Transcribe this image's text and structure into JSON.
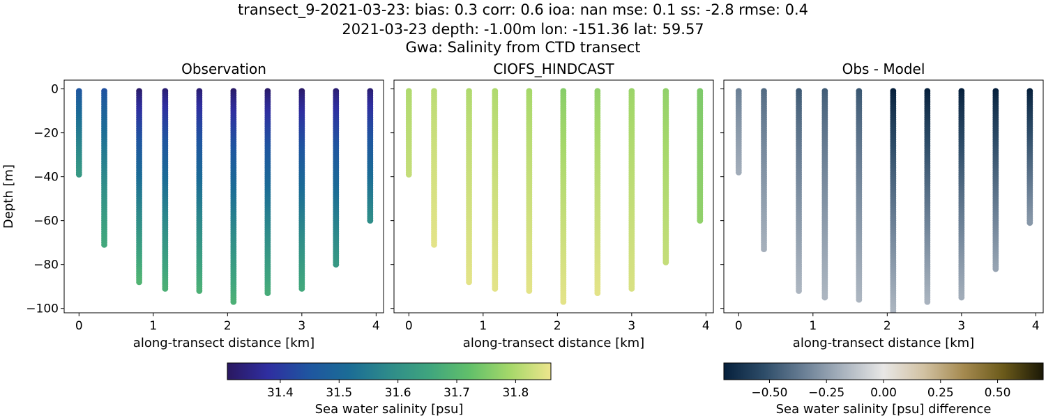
{
  "suptitle": {
    "line1": "transect_9-2021-03-23: bias: 0.3  corr: 0.6  ioa: nan  mse: 0.1  ss: -2.8  rmse: 0.4",
    "line2": "2021-03-23 depth: -1.00m lon: -151.36 lat: 59.57",
    "line3": "Gwa: Salinity from CTD transect"
  },
  "chart_data": [
    {
      "type": "scatter",
      "title": "Observation",
      "xlabel": "along-transect distance [km]",
      "ylabel": "Depth [m]",
      "xlim": [
        -0.2,
        4.1
      ],
      "ylim": [
        -102,
        4
      ],
      "xticks": [
        0,
        1,
        2,
        3,
        4
      ],
      "yticks": [
        0,
        -20,
        -40,
        -60,
        -80,
        -100
      ],
      "color_scale": "salinity",
      "profiles": [
        {
          "x": 0.0,
          "depth_min": -39,
          "surface": 31.45,
          "bottom": 31.62
        },
        {
          "x": 0.34,
          "depth_min": -71,
          "surface": 31.44,
          "bottom": 31.66
        },
        {
          "x": 0.81,
          "depth_min": -88,
          "surface": 31.32,
          "bottom": 31.69
        },
        {
          "x": 1.16,
          "depth_min": -91,
          "surface": 31.33,
          "bottom": 31.68
        },
        {
          "x": 1.62,
          "depth_min": -92,
          "surface": 31.33,
          "bottom": 31.68
        },
        {
          "x": 2.08,
          "depth_min": -97,
          "surface": 31.32,
          "bottom": 31.68
        },
        {
          "x": 2.54,
          "depth_min": -93,
          "surface": 31.32,
          "bottom": 31.67
        },
        {
          "x": 3.0,
          "depth_min": -91,
          "surface": 31.32,
          "bottom": 31.66
        },
        {
          "x": 3.46,
          "depth_min": -80,
          "surface": 31.33,
          "bottom": 31.62
        },
        {
          "x": 3.92,
          "depth_min": -60,
          "surface": 31.33,
          "bottom": 31.59
        }
      ]
    },
    {
      "type": "scatter",
      "title": "CIOFS_HINDCAST",
      "xlabel": "along-transect distance [km]",
      "xlim": [
        -0.2,
        4.1
      ],
      "ylim": [
        -102,
        4
      ],
      "xticks": [
        0,
        1,
        2,
        3,
        4
      ],
      "color_scale": "salinity",
      "profiles": [
        {
          "x": 0.0,
          "depth_min": -39,
          "surface": 31.8,
          "bottom": 31.82
        },
        {
          "x": 0.34,
          "depth_min": -71,
          "surface": 31.81,
          "bottom": 31.85
        },
        {
          "x": 0.81,
          "depth_min": -88,
          "surface": 31.8,
          "bottom": 31.85
        },
        {
          "x": 1.16,
          "depth_min": -91,
          "surface": 31.8,
          "bottom": 31.85
        },
        {
          "x": 1.62,
          "depth_min": -92,
          "surface": 31.79,
          "bottom": 31.85
        },
        {
          "x": 2.08,
          "depth_min": -97,
          "surface": 31.76,
          "bottom": 31.85
        },
        {
          "x": 2.54,
          "depth_min": -93,
          "surface": 31.77,
          "bottom": 31.85
        },
        {
          "x": 3.0,
          "depth_min": -91,
          "surface": 31.78,
          "bottom": 31.84
        },
        {
          "x": 3.46,
          "depth_min": -79,
          "surface": 31.77,
          "bottom": 31.82
        },
        {
          "x": 3.92,
          "depth_min": -60,
          "surface": 31.75,
          "bottom": 31.77
        }
      ]
    },
    {
      "type": "scatter",
      "title": "Obs - Model",
      "xlabel": "along-transect distance [km]",
      "xlim": [
        -0.2,
        4.1
      ],
      "ylim": [
        -102,
        4
      ],
      "xticks": [
        0,
        1,
        2,
        3,
        4
      ],
      "color_scale": "difference",
      "profiles": [
        {
          "x": 0.0,
          "depth_min": -38,
          "surface": -0.35,
          "bottom": -0.2
        },
        {
          "x": 0.34,
          "depth_min": -73,
          "surface": -0.42,
          "bottom": -0.19
        },
        {
          "x": 0.81,
          "depth_min": -92,
          "surface": -0.48,
          "bottom": -0.17
        },
        {
          "x": 1.16,
          "depth_min": -95,
          "surface": -0.47,
          "bottom": -0.17
        },
        {
          "x": 1.62,
          "depth_min": -96,
          "surface": -0.49,
          "bottom": -0.17
        },
        {
          "x": 2.08,
          "depth_min": -102,
          "surface": -0.7,
          "bottom": -0.17
        },
        {
          "x": 2.54,
          "depth_min": -97,
          "surface": -0.7,
          "bottom": -0.18
        },
        {
          "x": 3.0,
          "depth_min": -95,
          "surface": -0.7,
          "bottom": -0.2
        },
        {
          "x": 3.46,
          "depth_min": -82,
          "surface": -0.7,
          "bottom": -0.23
        },
        {
          "x": 3.92,
          "depth_min": -61,
          "surface": -0.7,
          "bottom": -0.27
        }
      ]
    }
  ],
  "colorbars": {
    "salinity": {
      "label": "Sea water salinity [psu]",
      "range": [
        31.31,
        31.86
      ],
      "ticks": [
        31.4,
        31.5,
        31.6,
        31.7,
        31.8
      ],
      "tick_labels": [
        "31.4",
        "31.5",
        "31.6",
        "31.7",
        "31.8"
      ],
      "colors": [
        "#2a1860",
        "#2f2ea0",
        "#1f55a0",
        "#1b6c96",
        "#2e8b8a",
        "#3fa57e",
        "#62c06a",
        "#a6d86a",
        "#ede58d"
      ]
    },
    "difference": {
      "label": "Sea water salinity [psu] difference",
      "range": [
        -0.7,
        0.7
      ],
      "ticks": [
        -0.5,
        -0.25,
        0,
        0.25,
        0.5
      ],
      "tick_labels": [
        "−0.50",
        "−0.25",
        "0.00",
        "0.25",
        "0.50"
      ],
      "colors": [
        "#06203c",
        "#2d4c68",
        "#6a7f95",
        "#aab4bf",
        "#e8e7e6",
        "#d2c2a3",
        "#a58a50",
        "#6b5a1a",
        "#1a1806"
      ]
    }
  }
}
